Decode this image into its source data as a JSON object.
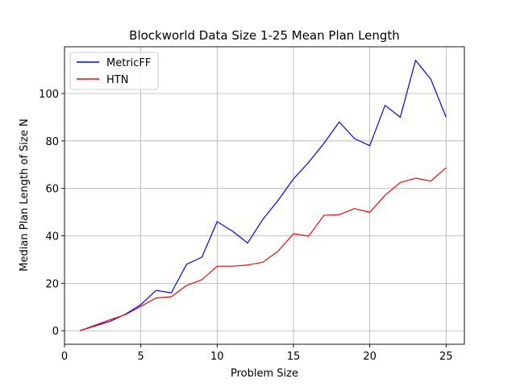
{
  "chart_data": {
    "type": "line",
    "title": "Blockworld Data Size 1-25 Mean Plan Length",
    "xlabel": "Problem Size",
    "ylabel": "Median Plan Length of Size N",
    "xlim": [
      0,
      26.2
    ],
    "ylim": [
      -5.7,
      119.7
    ],
    "xticks": [
      0,
      5,
      10,
      15,
      20,
      25
    ],
    "yticks": [
      0,
      20,
      40,
      60,
      80,
      100
    ],
    "grid": true,
    "legend": "top-left",
    "x": [
      1,
      2,
      3,
      4,
      5,
      6,
      7,
      8,
      9,
      10,
      11,
      12,
      13,
      14,
      15,
      16,
      17,
      18,
      19,
      20,
      21,
      22,
      23,
      24,
      25
    ],
    "series": [
      {
        "name": "MetricFF",
        "color": "#0000ff",
        "values": [
          0,
          2,
          4,
          7,
          11,
          17,
          16,
          28,
          31,
          46,
          42,
          37,
          47,
          55,
          64,
          71,
          79,
          88,
          81,
          78,
          95,
          90,
          114,
          106,
          90
        ]
      },
      {
        "name": "HTN",
        "color": "#ff0000",
        "values": [
          0,
          2.3,
          4.7,
          6.8,
          10.3,
          13.8,
          14.3,
          19.1,
          21.5,
          27.2,
          27.2,
          27.7,
          28.9,
          33.6,
          40.9,
          39.9,
          48.7,
          48.9,
          51.5,
          49.9,
          57.1,
          62.5,
          64.3,
          63.1,
          68.7
        ]
      }
    ]
  }
}
